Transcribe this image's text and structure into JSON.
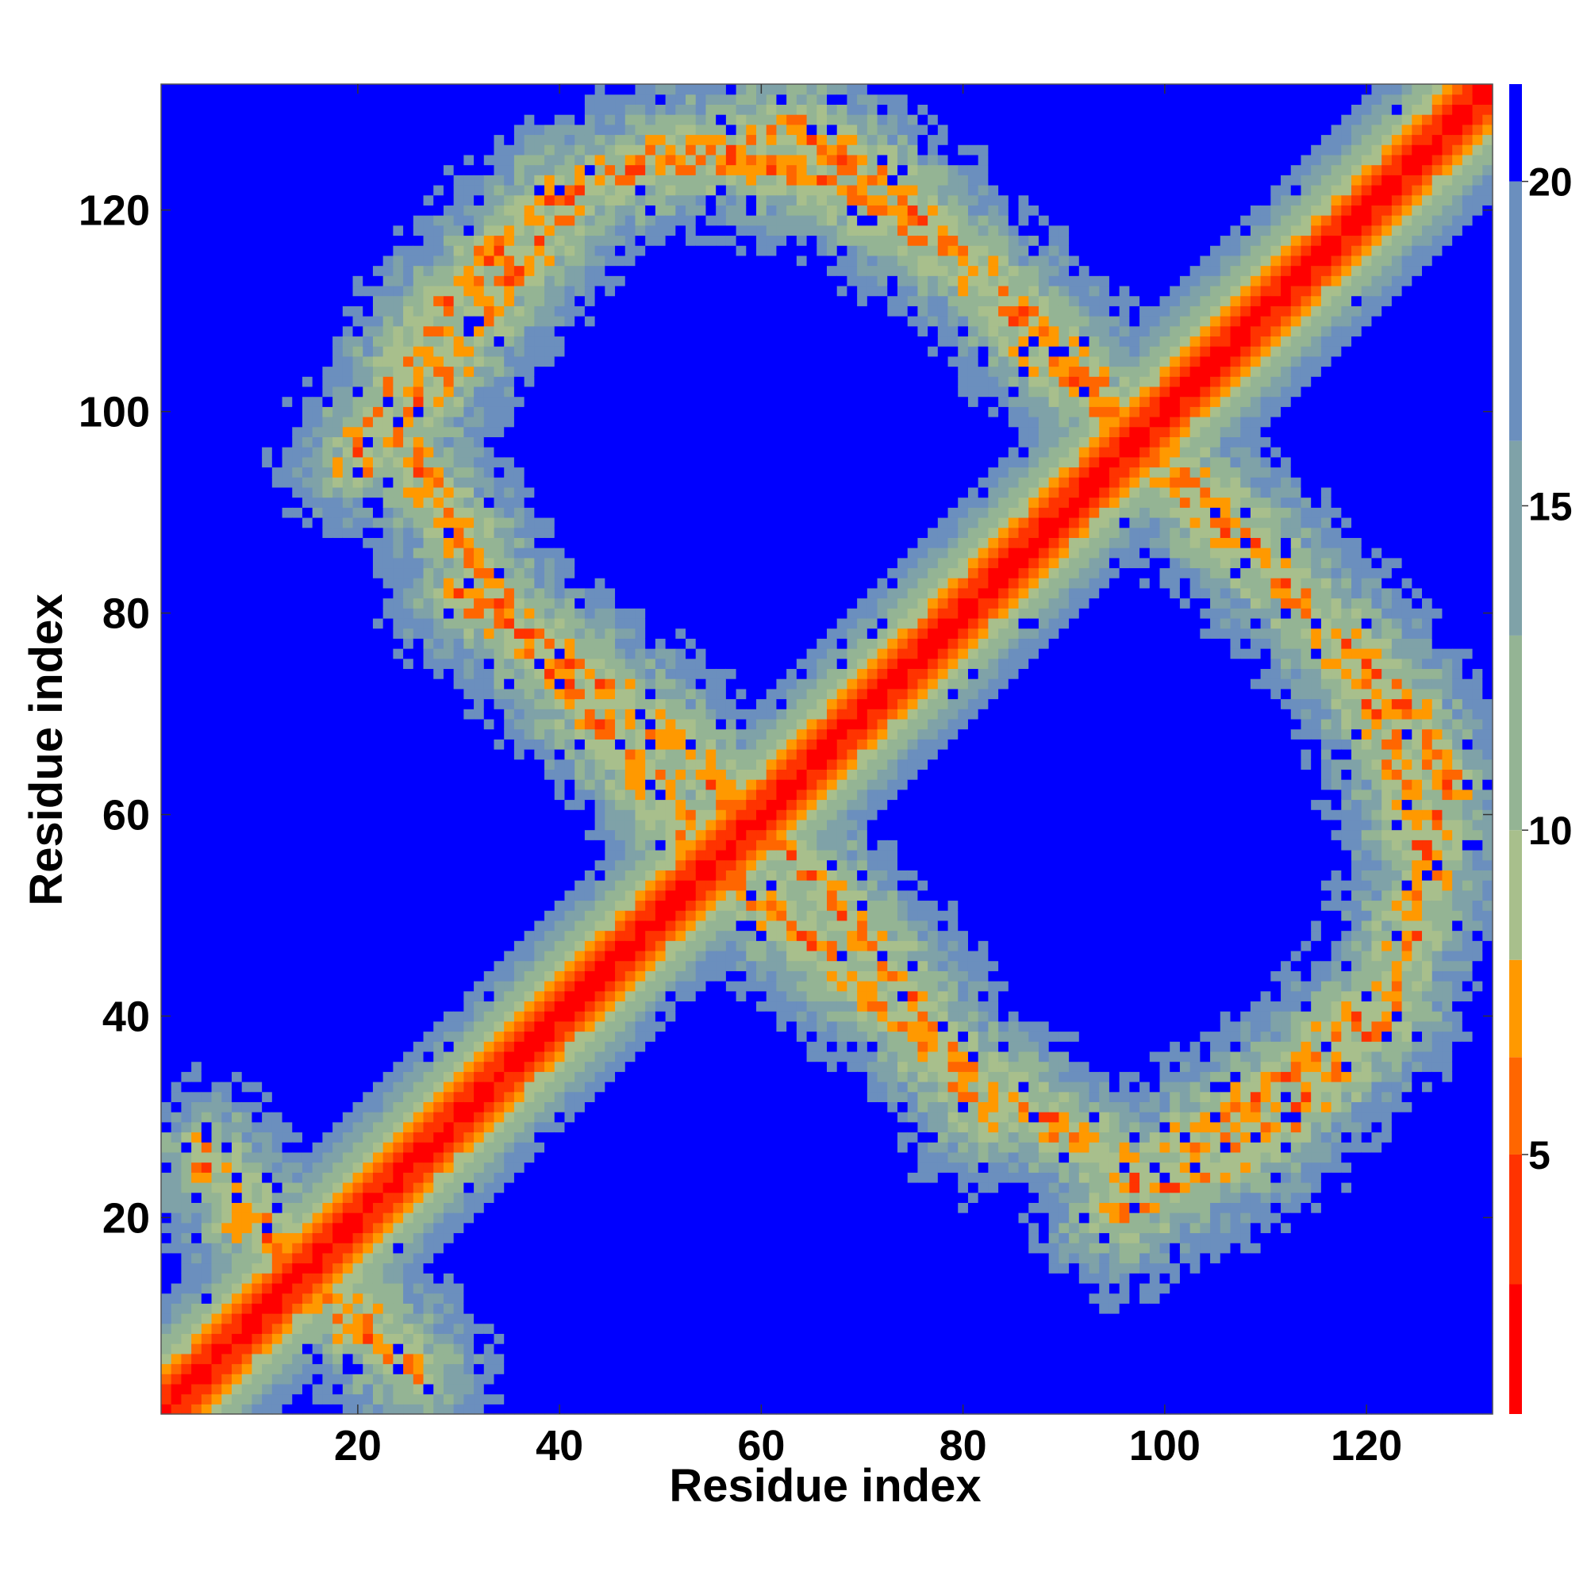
{
  "chart_data": {
    "type": "heatmap",
    "title": "",
    "xlabel": "Residue index",
    "ylabel": "Residue index",
    "xlim": [
      1,
      132
    ],
    "ylim": [
      1,
      132
    ],
    "xticks": [
      20,
      40,
      60,
      80,
      100,
      120
    ],
    "yticks": [
      20,
      40,
      60,
      80,
      100,
      120
    ],
    "xtick_labels": [
      "20",
      "40",
      "60",
      "80",
      "100",
      "120"
    ],
    "ytick_labels": [
      "20",
      "40",
      "60",
      "80",
      "100",
      "120"
    ],
    "n_residues": 132,
    "value_range": [
      1,
      21.5
    ],
    "cutoff": 20,
    "colorbar": {
      "ticks": [
        5,
        10,
        15,
        20
      ],
      "tick_labels": [
        "5",
        "10",
        "15",
        "20"
      ],
      "range": [
        1,
        21.5
      ],
      "colors": [
        {
          "upto": 3,
          "color": "#ff0000"
        },
        {
          "upto": 5,
          "color": "#ff3300"
        },
        {
          "upto": 6.5,
          "color": "#ff6600"
        },
        {
          "upto": 8,
          "color": "#ff9900"
        },
        {
          "upto": 10,
          "color": "#a8bf8c"
        },
        {
          "upto": 13,
          "color": "#94b494"
        },
        {
          "upto": 16,
          "color": "#7fa2a8"
        },
        {
          "upto": 20,
          "color": "#6b8fbe"
        },
        {
          "upto": 999,
          "color": "#0000ff"
        }
      ]
    },
    "contact_bands": [
      {
        "name": "diagonal",
        "points": [
          [
            1,
            1
          ],
          [
            132,
            132
          ]
        ]
      },
      {
        "name": "upper-left arc",
        "points": [
          [
            20,
            95
          ],
          [
            28,
            110
          ],
          [
            40,
            122
          ],
          [
            52,
            125
          ],
          [
            63,
            128
          ],
          [
            72,
            123
          ],
          [
            80,
            115
          ],
          [
            88,
            106
          ],
          [
            95,
            99
          ]
        ]
      },
      {
        "name": "middle-left arc",
        "points": [
          [
            30,
            82
          ],
          [
            40,
            76
          ],
          [
            48,
            70
          ],
          [
            55,
            64
          ],
          [
            58,
            58
          ]
        ]
      },
      {
        "name": "right arc",
        "points": [
          [
            100,
            95
          ],
          [
            108,
            88
          ],
          [
            115,
            80
          ],
          [
            120,
            72
          ],
          [
            124,
            64
          ],
          [
            126,
            52
          ],
          [
            122,
            42
          ],
          [
            112,
            34
          ],
          [
            102,
            27
          ],
          [
            97,
            23
          ]
        ]
      },
      {
        "name": "lower arc",
        "points": [
          [
            58,
            53
          ],
          [
            68,
            45
          ],
          [
            78,
            36
          ],
          [
            88,
            30
          ],
          [
            97,
            24
          ]
        ]
      },
      {
        "name": "bottom-left corner",
        "points": [
          [
            5,
            26
          ],
          [
            10,
            20
          ],
          [
            15,
            14
          ],
          [
            20,
            9
          ],
          [
            26,
            5
          ]
        ]
      }
    ],
    "grid": false,
    "legend": "colorbar-right"
  }
}
